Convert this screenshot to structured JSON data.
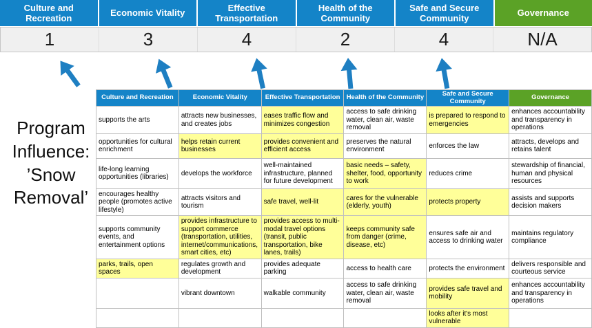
{
  "colors": {
    "header_blue": "#1484C8",
    "header_green": "#5BA226",
    "highlight_yellow": "#FFFF99",
    "arrow_blue": "#1E7FC2",
    "score_band_bg": "#F0F0F0"
  },
  "chart_data": {
    "type": "table",
    "title": "Program Influence: ’Snow Removal’",
    "column_headers": [
      "Culture and Recreation",
      "Economic Vitality",
      "Effective Transportation",
      "Health of the Community",
      "Safe and Secure Community",
      "Governance"
    ],
    "scores": [
      "1",
      "3",
      "4",
      "2",
      "4",
      "N/A"
    ],
    "rows": [
      [
        {
          "text": "supports the arts",
          "highlight": false
        },
        {
          "text": "attracts new businesses, and creates jobs",
          "highlight": false
        },
        {
          "text": "eases traffic flow and minimizes congestion",
          "highlight": true
        },
        {
          "text": "access to safe drinking water, clean air, waste removal",
          "highlight": false
        },
        {
          "text": "is prepared to respond to emergencies",
          "highlight": true
        },
        {
          "text": "enhances accountability and transparency in operations",
          "highlight": false
        }
      ],
      [
        {
          "text": "opportunities for cultural enrichment",
          "highlight": false
        },
        {
          "text": "helps retain current businesses",
          "highlight": true
        },
        {
          "text": "provides convenient and efficient access",
          "highlight": true
        },
        {
          "text": "preserves the natural environment",
          "highlight": false
        },
        {
          "text": "enforces the law",
          "highlight": false
        },
        {
          "text": "attracts, develops and retains talent",
          "highlight": false
        }
      ],
      [
        {
          "text": "life-long learning opportunities (libraries)",
          "highlight": false
        },
        {
          "text": "develops the workforce",
          "highlight": false
        },
        {
          "text": "well-maintained infrastructure, planned for future development",
          "highlight": false
        },
        {
          "text": "basic needs – safety, shelter, food, opportunity to work",
          "highlight": true
        },
        {
          "text": "reduces crime",
          "highlight": false
        },
        {
          "text": "stewardship of financial, human and physical resources",
          "highlight": false
        }
      ],
      [
        {
          "text": "encourages healthy people (promotes active lifestyle)",
          "highlight": false
        },
        {
          "text": "attracts visitors and tourism",
          "highlight": false
        },
        {
          "text": "safe travel, well-lit",
          "highlight": true
        },
        {
          "text": "cares for the vulnerable (elderly, youth)",
          "highlight": true
        },
        {
          "text": "protects property",
          "highlight": true
        },
        {
          "text": "assists and supports decision makers",
          "highlight": false
        }
      ],
      [
        {
          "text": "supports community events, and entertainment options",
          "highlight": false
        },
        {
          "text": "provides infrastructure to support commerce (transportation, utilities, internet/communications, smart cities, etc)",
          "highlight": true
        },
        {
          "text": "provides access to multi-modal travel options (transit, public transportation, bike lanes, trails)",
          "highlight": true
        },
        {
          "text": "keeps community safe from danger (crime, disease, etc)",
          "highlight": true
        },
        {
          "text": "ensures safe air and access to drinking water",
          "highlight": false
        },
        {
          "text": "maintains regulatory compliance",
          "highlight": false
        }
      ],
      [
        {
          "text": "parks, trails, open spaces",
          "highlight": true
        },
        {
          "text": "regulates growth and development",
          "highlight": false
        },
        {
          "text": "provides adequate parking",
          "highlight": false
        },
        {
          "text": "access to health care",
          "highlight": false
        },
        {
          "text": "protects the environment",
          "highlight": false
        },
        {
          "text": "delivers responsible and courteous service",
          "highlight": false
        }
      ],
      [
        {
          "text": "",
          "highlight": false
        },
        {
          "text": "vibrant downtown",
          "highlight": false
        },
        {
          "text": "walkable community",
          "highlight": false
        },
        {
          "text": "access to safe drinking water, clean air, waste removal",
          "highlight": false
        },
        {
          "text": "provides safe travel and mobility",
          "highlight": true
        },
        {
          "text": "enhances accountability and transparency in operations",
          "highlight": false
        }
      ],
      [
        {
          "text": "",
          "highlight": false
        },
        {
          "text": "",
          "highlight": false
        },
        {
          "text": "",
          "highlight": false
        },
        {
          "text": "",
          "highlight": false
        },
        {
          "text": "looks after it's most vulnerable",
          "highlight": true
        },
        {
          "text": "",
          "highlight": false
        }
      ]
    ]
  }
}
